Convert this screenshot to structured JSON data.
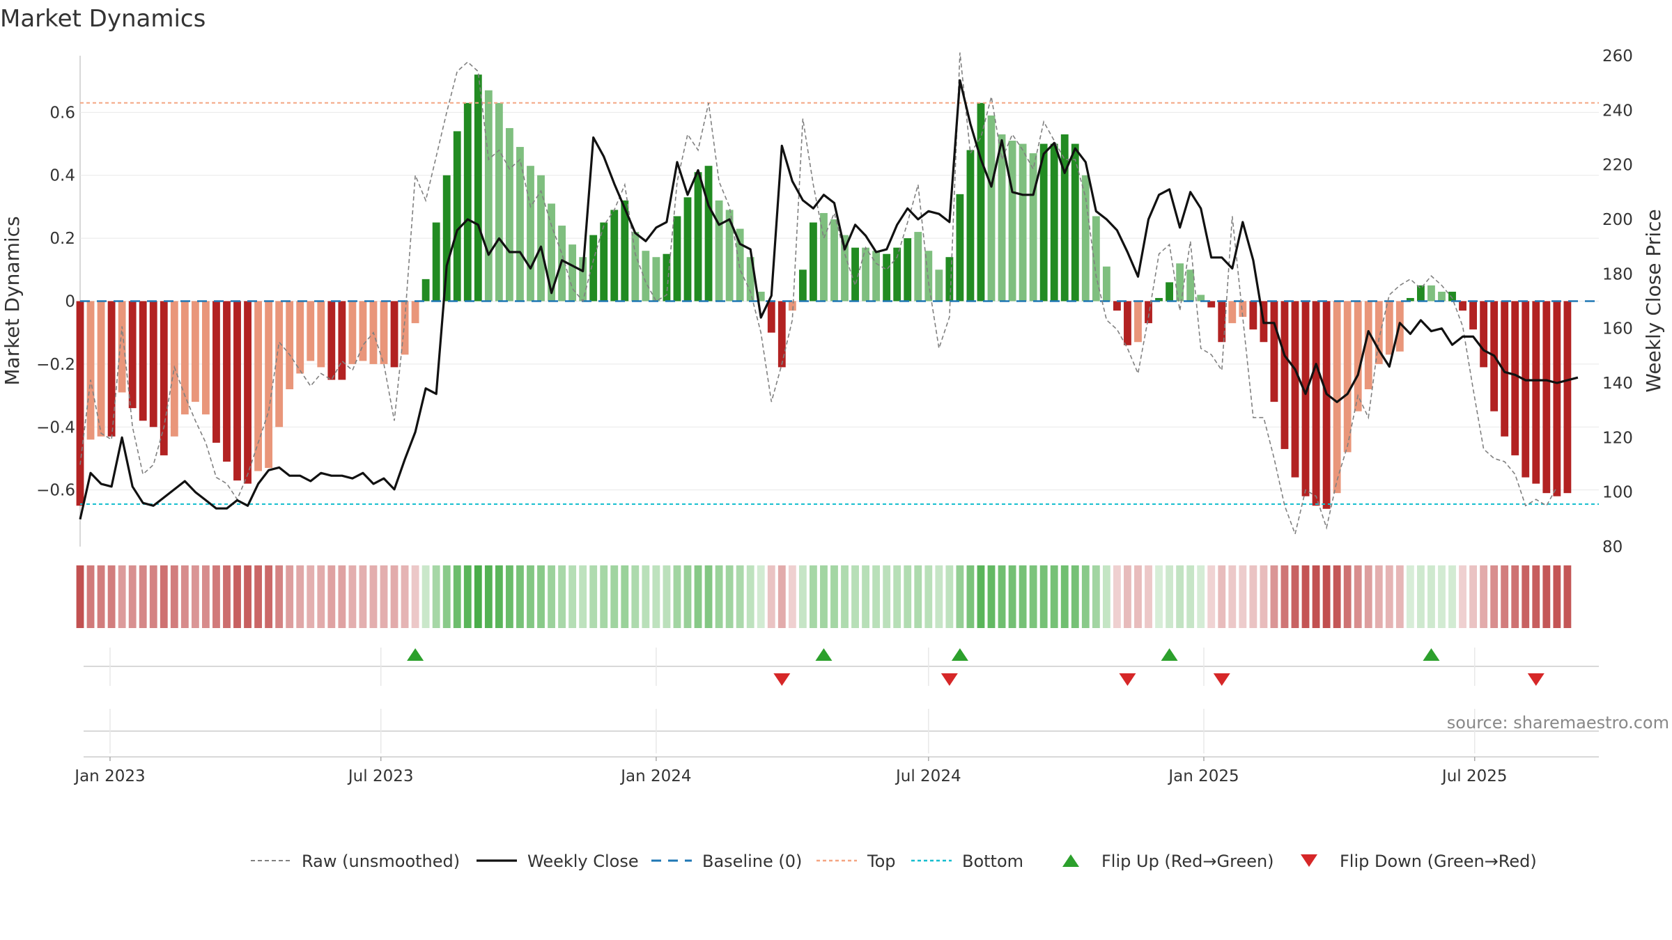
{
  "chart_data": {
    "type": "bar",
    "title": "Market Dynamics",
    "ylabel": "Market Dynamics",
    "y2label": "Weekly Close Price",
    "ylim": [
      -0.78,
      0.78
    ],
    "y2lim": [
      80,
      260
    ],
    "yticks": [
      {
        "v": 0.6,
        "label": "0.6"
      },
      {
        "v": 0.4,
        "label": "0.4"
      },
      {
        "v": 0.2,
        "label": "0.2"
      },
      {
        "v": 0,
        "label": "0"
      },
      {
        "v": -0.2,
        "label": "−0.2"
      },
      {
        "v": -0.4,
        "label": "−0.4"
      },
      {
        "v": -0.6,
        "label": "−0.6"
      }
    ],
    "y2ticks": [
      260,
      240,
      220,
      200,
      180,
      160,
      140,
      120,
      100,
      80
    ],
    "xlim": [
      "2022-12-12",
      "2025-09-22"
    ],
    "xticks": [
      {
        "date": "2023-01-01",
        "label": "Jan 2023"
      },
      {
        "date": "2023-07-01",
        "label": "Jul 2023"
      },
      {
        "date": "2024-01-01",
        "label": "Jan 2024"
      },
      {
        "date": "2024-07-01",
        "label": "Jul 2024"
      },
      {
        "date": "2025-01-01",
        "label": "Jan 2025"
      },
      {
        "date": "2025-07-01",
        "label": "Jul 2025"
      }
    ],
    "start_week": "2022-12-12",
    "week_days": 7,
    "dynamics": [
      -0.65,
      -0.44,
      -0.43,
      -0.43,
      -0.29,
      -0.34,
      -0.38,
      -0.4,
      -0.49,
      -0.43,
      -0.36,
      -0.32,
      -0.36,
      -0.45,
      -0.51,
      -0.57,
      -0.58,
      -0.54,
      -0.53,
      -0.4,
      -0.28,
      -0.23,
      -0.19,
      -0.21,
      -0.25,
      -0.25,
      -0.2,
      -0.19,
      -0.2,
      -0.2,
      -0.21,
      -0.17,
      -0.07,
      0.07,
      0.25,
      0.4,
      0.54,
      0.63,
      0.72,
      0.67,
      0.63,
      0.55,
      0.49,
      0.43,
      0.4,
      0.31,
      0.24,
      0.18,
      0.14,
      0.21,
      0.25,
      0.29,
      0.32,
      0.22,
      0.16,
      0.14,
      0.15,
      0.27,
      0.33,
      0.41,
      0.43,
      0.32,
      0.29,
      0.23,
      0.14,
      0.03,
      -0.1,
      -0.21,
      -0.03,
      0.1,
      0.25,
      0.28,
      0.26,
      0.21,
      0.17,
      0.17,
      0.16,
      0.15,
      0.17,
      0.2,
      0.22,
      0.16,
      0.1,
      0.14,
      0.34,
      0.48,
      0.63,
      0.59,
      0.53,
      0.51,
      0.5,
      0.47,
      0.5,
      0.5,
      0.53,
      0.5,
      0.4,
      0.27,
      0.11,
      -0.03,
      -0.14,
      -0.13,
      -0.07,
      0.01,
      0.06,
      0.12,
      0.1,
      0.02,
      -0.02,
      -0.13,
      -0.07,
      -0.05,
      -0.09,
      -0.13,
      -0.32,
      -0.47,
      -0.56,
      -0.62,
      -0.65,
      -0.66,
      -0.61,
      -0.48,
      -0.35,
      -0.28,
      -0.2,
      -0.17,
      -0.16,
      0.01,
      0.05,
      0.05,
      0.03,
      0.03,
      -0.03,
      -0.09,
      -0.21,
      -0.35,
      -0.43,
      -0.49,
      -0.56,
      -0.58,
      -0.61,
      -0.62,
      -0.61
    ],
    "shades": [
      0,
      1,
      1,
      0,
      1,
      0,
      0,
      0,
      0,
      1,
      1,
      1,
      1,
      0,
      0,
      0,
      0,
      1,
      1,
      1,
      1,
      1,
      1,
      1,
      0,
      0,
      1,
      1,
      1,
      1,
      0,
      1,
      1,
      0,
      0,
      0,
      0,
      0,
      0,
      1,
      1,
      1,
      1,
      1,
      1,
      1,
      1,
      1,
      1,
      0,
      0,
      0,
      0,
      1,
      1,
      1,
      0,
      0,
      0,
      0,
      0,
      1,
      1,
      1,
      1,
      1,
      0,
      0,
      1,
      0,
      0,
      1,
      1,
      1,
      0,
      1,
      1,
      0,
      0,
      0,
      1,
      1,
      1,
      0,
      0,
      0,
      0,
      1,
      1,
      1,
      1,
      1,
      0,
      0,
      0,
      0,
      1,
      1,
      1,
      0,
      0,
      1,
      0,
      0,
      0,
      1,
      1,
      1,
      0,
      0,
      1,
      1,
      0,
      0,
      0,
      0,
      0,
      0,
      0,
      0,
      1,
      1,
      1,
      1,
      1,
      1,
      1,
      0,
      0,
      1,
      1,
      0,
      0,
      0,
      0,
      0,
      0,
      0,
      0,
      0,
      0,
      0,
      0,
      1
    ],
    "raw": [
      -0.52,
      -0.25,
      -0.42,
      -0.44,
      -0.08,
      -0.4,
      -0.55,
      -0.52,
      -0.4,
      -0.21,
      -0.3,
      -0.38,
      -0.45,
      -0.56,
      -0.58,
      -0.63,
      -0.55,
      -0.45,
      -0.35,
      -0.13,
      -0.17,
      -0.22,
      -0.27,
      -0.23,
      -0.25,
      -0.19,
      -0.22,
      -0.14,
      -0.1,
      -0.2,
      -0.38,
      -0.06,
      0.4,
      0.32,
      0.46,
      0.6,
      0.73,
      0.76,
      0.73,
      0.45,
      0.48,
      0.42,
      0.45,
      0.3,
      0.35,
      0.24,
      0.15,
      0.04,
      0.0,
      0.13,
      0.24,
      0.29,
      0.37,
      0.15,
      0.06,
      0.0,
      0.02,
      0.38,
      0.53,
      0.48,
      0.63,
      0.38,
      0.3,
      0.1,
      0.03,
      -0.1,
      -0.32,
      -0.2,
      -0.06,
      0.58,
      0.37,
      0.2,
      0.28,
      0.15,
      0.05,
      0.17,
      0.12,
      0.1,
      0.14,
      0.25,
      0.37,
      0.06,
      -0.15,
      -0.05,
      0.79,
      0.47,
      0.52,
      0.65,
      0.45,
      0.53,
      0.48,
      0.42,
      0.57,
      0.51,
      0.45,
      0.45,
      0.33,
      0.08,
      -0.06,
      -0.09,
      -0.15,
      -0.23,
      -0.05,
      0.15,
      0.18,
      -0.03,
      0.19,
      -0.15,
      -0.17,
      -0.22,
      0.27,
      -0.05,
      -0.37,
      -0.37,
      -0.5,
      -0.65,
      -0.74,
      -0.6,
      -0.62,
      -0.72,
      -0.57,
      -0.46,
      -0.3,
      -0.37,
      -0.12,
      0.02,
      0.05,
      0.07,
      0.04,
      0.08,
      0.05,
      0.01,
      -0.08,
      -0.28,
      -0.47,
      -0.5,
      -0.51,
      -0.55,
      -0.65,
      -0.63,
      -0.65,
      -0.59
    ],
    "weekly_close": [
      90,
      107,
      103,
      102,
      120,
      102,
      96,
      95,
      98,
      101,
      104,
      100,
      97,
      94,
      94,
      97,
      95,
      103,
      108,
      109,
      106,
      106,
      104,
      107,
      106,
      106,
      105,
      107,
      103,
      105,
      101,
      112,
      122,
      138,
      136,
      183,
      196,
      200,
      198,
      187,
      193,
      188,
      188,
      182,
      190,
      173,
      185,
      183,
      181,
      230,
      223,
      213,
      204,
      195,
      192,
      197,
      199,
      221,
      209,
      218,
      205,
      198,
      200,
      191,
      189,
      164,
      172,
      227,
      214,
      207,
      204,
      209,
      206,
      189,
      198,
      194,
      188,
      189,
      198,
      204,
      200,
      203,
      202,
      199,
      251,
      235,
      222,
      212,
      229,
      210,
      209,
      209,
      224,
      228,
      217,
      226,
      221,
      203,
      200,
      196,
      188,
      179,
      200,
      209,
      211,
      197,
      210,
      204,
      186,
      186,
      182,
      199,
      185,
      162,
      162,
      150,
      145,
      136,
      147,
      136,
      133,
      136,
      143,
      159,
      152,
      146,
      162,
      158,
      163,
      159,
      160,
      154,
      157,
      157,
      152,
      150,
      144,
      143,
      141,
      141,
      141,
      140,
      141,
      142
    ],
    "top": 0.63,
    "bottom": -0.645,
    "baseline": 0,
    "flip_up": [
      "2023-07-24",
      "2024-04-22",
      "2024-07-22",
      "2024-12-09",
      "2025-06-02"
    ],
    "flip_down": [
      "2024-03-25",
      "2024-07-15",
      "2024-11-11",
      "2025-01-13",
      "2025-08-11"
    ],
    "legend": [
      "Raw (unsmoothed)",
      "Weekly Close",
      "Baseline (0)",
      "Top",
      "Bottom",
      "Flip Up (Red→Green)",
      "Flip Down (Green→Red)"
    ],
    "legend_position": "bottom-center",
    "source": "source: sharemaestro.com"
  },
  "colors": {
    "red_strong": "#b22222",
    "red_light": "#e9967a",
    "green_strong": "#228b22",
    "green_light": "#7fbf7f",
    "raw": "#808080",
    "close": "#111111",
    "baseline": "#1f77b4",
    "top": "#f4a582",
    "bottom": "#17becf",
    "flip_up": "#2ca02c",
    "flip_down": "#d62728",
    "grid": "#e8e8e8"
  }
}
